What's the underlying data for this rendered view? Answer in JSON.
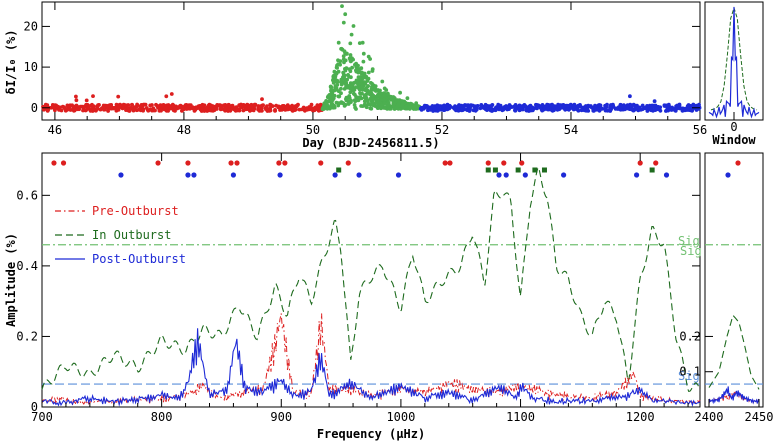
{
  "colors": {
    "pre": "#dd1f1f",
    "in": "#4caf50",
    "in_dark": "#1e6b1e",
    "post": "#1e2ad6",
    "sig_in": "#73c173",
    "sig_post": "#5b8fd9"
  },
  "chart_data": [
    {
      "id": "lightcurve",
      "type": "scatter",
      "xlabel": "Day (BJD-2456811.5)",
      "ylabel": "δI/I₀ (%)",
      "xlim": [
        45.8,
        56.0
      ],
      "ylim": [
        -3,
        26
      ],
      "x_ticks": [
        "46",
        "48",
        "50",
        "52",
        "54",
        "56"
      ],
      "y_ticks": [
        "0",
        "10",
        "20"
      ],
      "segments": [
        {
          "name": "Pre-Outburst",
          "x_range": [
            45.8,
            50.15
          ],
          "scatter": 0.8,
          "color_key": "pre"
        },
        {
          "name": "In Outburst",
          "x_range": [
            50.15,
            51.65
          ],
          "color_key": "in"
        },
        {
          "name": "Post-Outburst",
          "x_range": [
            51.65,
            56.0
          ],
          "scatter": 0.8,
          "color_key": "post"
        }
      ],
      "outburst_peak": {
        "x": 50.45,
        "y": 25
      },
      "outburst_envelope": [
        [
          50.15,
          0
        ],
        [
          50.25,
          3
        ],
        [
          50.35,
          8
        ],
        [
          50.45,
          12
        ],
        [
          50.6,
          10
        ],
        [
          50.8,
          7
        ],
        [
          51.0,
          4
        ],
        [
          51.3,
          2
        ],
        [
          51.65,
          0.5
        ]
      ]
    },
    {
      "id": "window",
      "type": "line",
      "xlabel": "Window",
      "x_ticks": [
        "0"
      ],
      "series": [
        {
          "values": [
            0.02,
            0.03,
            0.05,
            0.1,
            0.25,
            0.55,
            0.9,
            1.0,
            0.9,
            0.55,
            0.25,
            0.1,
            0.05,
            0.03,
            0.02
          ]
        }
      ]
    },
    {
      "id": "amplitude_spectrum",
      "type": "line",
      "xlabel": "Frequency (μHz)",
      "ylabel": "Amplitude (%)",
      "xlim": [
        700,
        1250
      ],
      "ylim": [
        0,
        0.72
      ],
      "x_ticks": [
        "700",
        "800",
        "900",
        "1000",
        "1100",
        "1200"
      ],
      "y_ticks": [
        "0",
        "0.2",
        "0.4",
        "0.6"
      ],
      "legend": [
        "Pre-Outburst",
        "In Outburst",
        "Post-Outburst"
      ],
      "sig_label": "Sig",
      "sig_in_outburst": 0.46,
      "sig_post_outburst": 0.065,
      "series": [
        {
          "name": "In Outburst",
          "color_key": "in_dark",
          "x": [
            700,
            720,
            740,
            760,
            780,
            800,
            820,
            835,
            850,
            865,
            880,
            895,
            905,
            915,
            925,
            935,
            945,
            950,
            958,
            965,
            975,
            985,
            1000,
            1010,
            1020,
            1035,
            1050,
            1060,
            1070,
            1078,
            1085,
            1092,
            1100,
            1108,
            1115,
            1122,
            1130,
            1140,
            1150,
            1160,
            1170,
            1180,
            1190,
            1200,
            1210,
            1220,
            1230,
            1240,
            1250
          ],
          "y": [
            0.05,
            0.12,
            0.09,
            0.15,
            0.11,
            0.19,
            0.16,
            0.22,
            0.2,
            0.29,
            0.2,
            0.34,
            0.26,
            0.38,
            0.3,
            0.42,
            0.52,
            0.45,
            0.12,
            0.32,
            0.37,
            0.4,
            0.28,
            0.44,
            0.3,
            0.36,
            0.4,
            0.5,
            0.35,
            0.6,
            0.61,
            0.58,
            0.3,
            0.58,
            0.67,
            0.6,
            0.4,
            0.36,
            0.26,
            0.2,
            0.3,
            0.26,
            0.07,
            0.36,
            0.5,
            0.46,
            0.2,
            0.06,
            0.05
          ]
        },
        {
          "name": "Pre-Outburst",
          "color_key": "pre",
          "x": [
            700,
            715,
            730,
            760,
            790,
            820,
            835,
            850,
            870,
            885,
            900,
            910,
            925,
            933,
            940,
            955,
            975,
            1000,
            1020,
            1040,
            1060,
            1080,
            1100,
            1130,
            1160,
            1180,
            1195,
            1200,
            1210,
            1230,
            1250
          ],
          "y": [
            0.02,
            0.03,
            0.015,
            0.02,
            0.025,
            0.04,
            0.07,
            0.03,
            0.05,
            0.06,
            0.3,
            0.05,
            0.04,
            0.29,
            0.06,
            0.06,
            0.04,
            0.06,
            0.05,
            0.08,
            0.06,
            0.05,
            0.07,
            0.04,
            0.03,
            0.05,
            0.11,
            0.04,
            0.03,
            0.02,
            0.02
          ]
        },
        {
          "name": "Post-Outburst",
          "color_key": "post",
          "x": [
            700,
            720,
            740,
            760,
            780,
            800,
            815,
            822,
            830,
            840,
            855,
            862,
            870,
            885,
            900,
            910,
            925,
            933,
            940,
            958,
            975,
            1000,
            1020,
            1040,
            1060,
            1083,
            1095,
            1101,
            1110,
            1130,
            1160,
            1190,
            1200,
            1210,
            1230,
            1250
          ],
          "y": [
            0.02,
            0.015,
            0.03,
            0.02,
            0.025,
            0.04,
            0.03,
            0.08,
            0.23,
            0.04,
            0.06,
            0.22,
            0.06,
            0.05,
            0.09,
            0.04,
            0.05,
            0.17,
            0.04,
            0.08,
            0.03,
            0.07,
            0.03,
            0.05,
            0.02,
            0.07,
            0.03,
            0.07,
            0.03,
            0.02,
            0.02,
            0.04,
            0.06,
            0.02,
            0.02,
            0.01
          ]
        }
      ],
      "markers": [
        {
          "series": "Pre-Outburst",
          "color_key": "pre",
          "shape": "dot",
          "x": [
            710,
            718,
            797,
            822,
            858,
            863,
            898,
            903,
            933,
            956,
            1037,
            1041,
            1073,
            1086,
            1101,
            1200,
            1213
          ]
        },
        {
          "series": "In Outburst",
          "color_key": "in_dark",
          "shape": "square",
          "x": [
            948,
            1073,
            1079,
            1098,
            1112,
            1120,
            1210
          ]
        },
        {
          "series": "Post-Outburst",
          "color_key": "post",
          "shape": "dot",
          "x": [
            766,
            822,
            827,
            860,
            899,
            945,
            965,
            998,
            1082,
            1088,
            1104,
            1136,
            1197,
            1222
          ]
        }
      ]
    },
    {
      "id": "zoom_2400_2450",
      "type": "line",
      "xlim": [
        2400,
        2450
      ],
      "ylim": [
        0,
        0.72
      ],
      "x_ticks": [
        "2400",
        "2450"
      ],
      "y_ticks": [
        "0.1",
        "0.2"
      ],
      "sig_label": "Sig",
      "series": [
        {
          "name": "In Outburst",
          "color_key": "in_dark",
          "x": [
            2400,
            2410,
            2418,
            2424,
            2430,
            2436,
            2442,
            2450
          ],
          "y": [
            0.055,
            0.1,
            0.2,
            0.26,
            0.24,
            0.17,
            0.09,
            0.05
          ]
        },
        {
          "name": "Pre-Outburst",
          "color_key": "pre",
          "x": [
            2400,
            2410,
            2420,
            2427,
            2434,
            2442,
            2450
          ],
          "y": [
            0.02,
            0.03,
            0.035,
            0.05,
            0.03,
            0.02,
            0.02
          ]
        },
        {
          "name": "Post-Outburst",
          "color_key": "post",
          "x": [
            2400,
            2410,
            2419,
            2422,
            2428,
            2436,
            2444,
            2450
          ],
          "y": [
            0.02,
            0.025,
            0.06,
            0.03,
            0.05,
            0.03,
            0.02,
            0.02
          ]
        }
      ],
      "markers": [
        {
          "series": "Pre-Outburst",
          "color_key": "pre",
          "shape": "dot",
          "x": [
            2429
          ]
        },
        {
          "series": "Post-Outburst",
          "color_key": "post",
          "shape": "dot",
          "x": [
            2419
          ]
        }
      ]
    }
  ]
}
